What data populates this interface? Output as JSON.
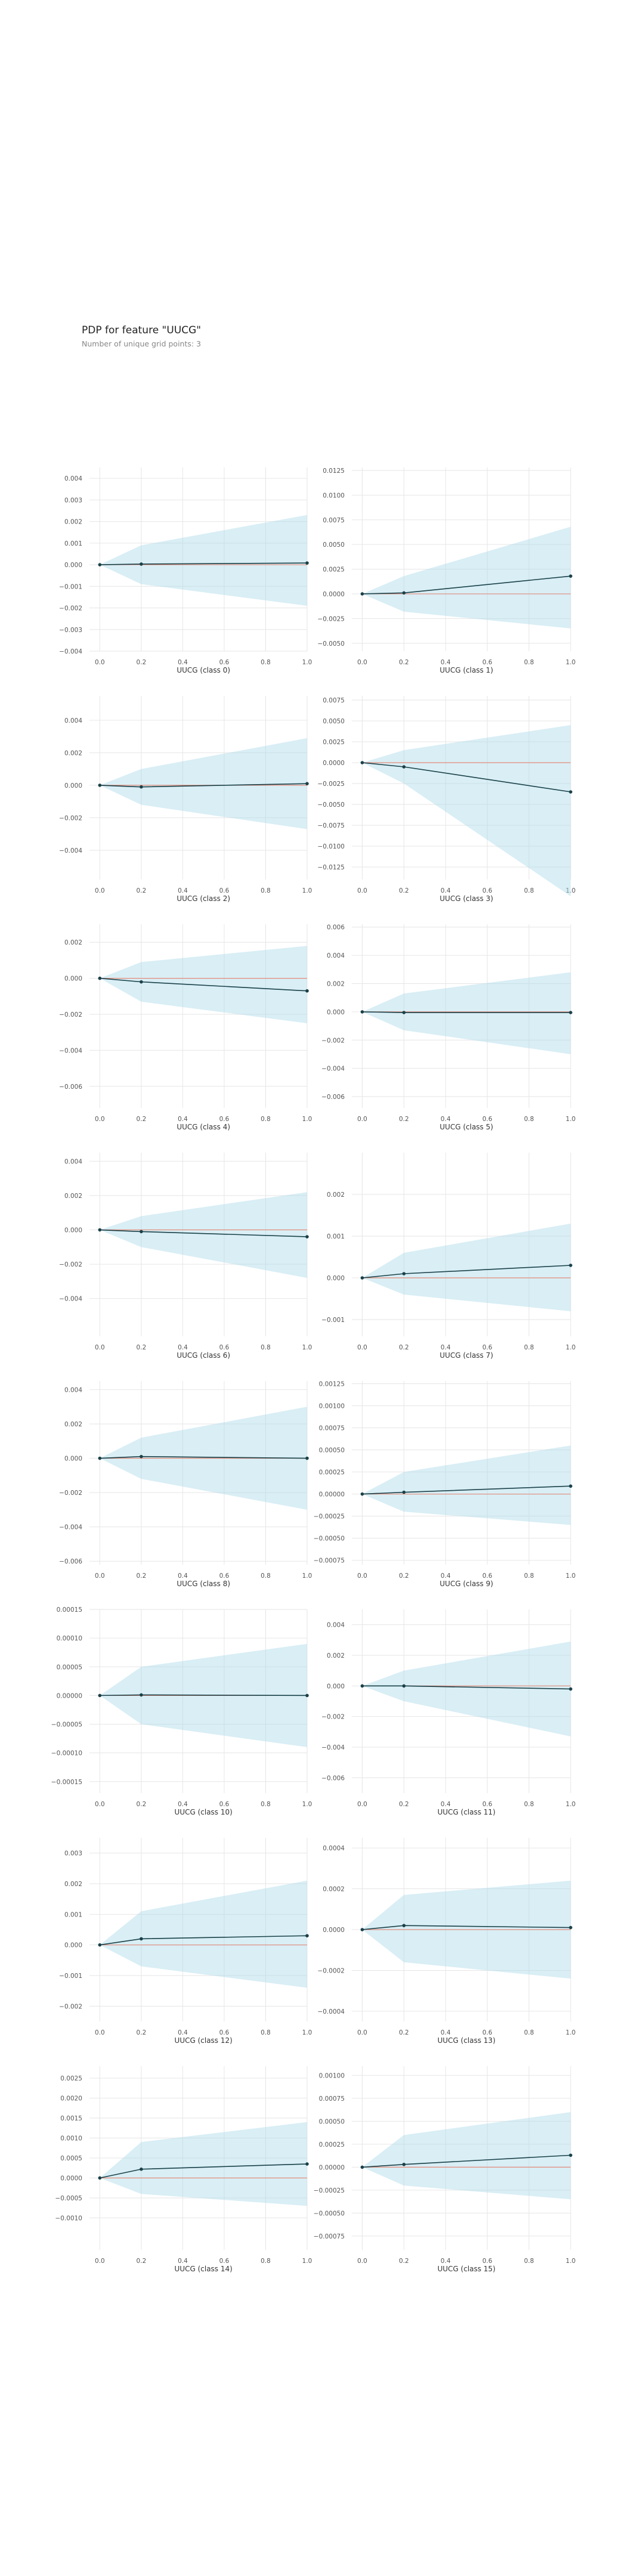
{
  "header": {
    "title": "PDP for feature \"UUCG\"",
    "subtitle": "Number of unique grid points: 3"
  },
  "colors": {
    "band": "#aad9e8",
    "line": "#1a4149",
    "zero_line": "#e38b7a",
    "grid": "#e6e6e6",
    "tick_text": "#555555"
  },
  "chart_data": [
    {
      "type": "line",
      "xlabel": "UUCG (class 0)",
      "x": [
        0.0,
        0.2,
        1.0
      ],
      "y": [
        0.0,
        3e-05,
        8e-05
      ],
      "lower": [
        0.0,
        -0.0009,
        -0.0019
      ],
      "upper": [
        0.0,
        0.0009,
        0.0023
      ],
      "ylim": [
        -0.004,
        0.0045
      ],
      "yticks": [
        -0.004,
        -0.003,
        -0.002,
        -0.001,
        0.0,
        0.001,
        0.002,
        0.003,
        0.004
      ],
      "ytick_labels": [
        "−0.004",
        "−0.003",
        "−0.002",
        "−0.001",
        "0.000",
        "0.001",
        "0.002",
        "0.003",
        "0.004"
      ],
      "xlim": [
        -0.05,
        1.0
      ],
      "xticks": [
        0.0,
        0.2,
        0.4,
        0.6,
        0.8,
        1.0
      ],
      "xtick_labels": [
        "0.0",
        "0.2",
        "0.4",
        "0.6",
        "0.8",
        "1.0"
      ]
    },
    {
      "type": "line",
      "xlabel": "UUCG (class 1)",
      "x": [
        0.0,
        0.2,
        1.0
      ],
      "y": [
        0.0,
        0.0001,
        0.0018
      ],
      "lower": [
        0.0,
        -0.0018,
        -0.0035
      ],
      "upper": [
        0.0,
        0.0018,
        0.0068
      ],
      "ylim": [
        -0.0058,
        0.0128
      ],
      "yticks": [
        -0.005,
        -0.0025,
        0.0,
        0.0025,
        0.005,
        0.0075,
        0.01,
        0.0125
      ],
      "ytick_labels": [
        "−0.0050",
        "−0.0025",
        "0.0000",
        "0.0025",
        "0.0050",
        "0.0075",
        "0.0100",
        "0.0125"
      ],
      "xlim": [
        -0.05,
        1.0
      ],
      "xticks": [
        0.0,
        0.2,
        0.4,
        0.6,
        0.8,
        1.0
      ],
      "xtick_labels": [
        "0.0",
        "0.2",
        "0.4",
        "0.6",
        "0.8",
        "1.0"
      ]
    },
    {
      "type": "line",
      "xlabel": "UUCG (class 2)",
      "x": [
        0.0,
        0.2,
        1.0
      ],
      "y": [
        0.0,
        -0.0001,
        0.0001
      ],
      "lower": [
        0.0,
        -0.0012,
        -0.0027
      ],
      "upper": [
        0.0,
        0.001,
        0.0029
      ],
      "ylim": [
        -0.0058,
        0.0055
      ],
      "yticks": [
        -0.004,
        -0.002,
        0.0,
        0.002,
        0.004
      ],
      "ytick_labels": [
        "−0.004",
        "−0.002",
        "0.000",
        "0.002",
        "0.004"
      ],
      "xlim": [
        -0.05,
        1.0
      ],
      "xticks": [
        0.0,
        0.2,
        0.4,
        0.6,
        0.8,
        1.0
      ],
      "xtick_labels": [
        "0.0",
        "0.2",
        "0.4",
        "0.6",
        "0.8",
        "1.0"
      ]
    },
    {
      "type": "line",
      "xlabel": "UUCG (class 3)",
      "x": [
        0.0,
        0.2,
        1.0
      ],
      "y": [
        0.0,
        -0.0005,
        -0.0035
      ],
      "lower": [
        0.0,
        -0.0025,
        -0.016
      ],
      "upper": [
        0.0,
        0.0015,
        0.0045
      ],
      "ylim": [
        -0.014,
        0.008
      ],
      "yticks": [
        -0.0125,
        -0.01,
        -0.0075,
        -0.005,
        -0.0025,
        0.0,
        0.0025,
        0.005,
        0.0075
      ],
      "ytick_labels": [
        "−0.0125",
        "−0.0100",
        "−0.0075",
        "−0.0050",
        "−0.0025",
        "0.0000",
        "0.0025",
        "0.0050",
        "0.0075"
      ],
      "xlim": [
        -0.05,
        1.0
      ],
      "xticks": [
        0.0,
        0.2,
        0.4,
        0.6,
        0.8,
        1.0
      ],
      "xtick_labels": [
        "0.0",
        "0.2",
        "0.4",
        "0.6",
        "0.8",
        "1.0"
      ]
    },
    {
      "type": "line",
      "xlabel": "UUCG (class 4)",
      "x": [
        0.0,
        0.2,
        1.0
      ],
      "y": [
        0.0,
        -0.0002,
        -0.0007
      ],
      "lower": [
        0.0,
        -0.0013,
        -0.0025
      ],
      "upper": [
        0.0,
        0.0009,
        0.0018
      ],
      "ylim": [
        -0.0072,
        0.003
      ],
      "yticks": [
        -0.006,
        -0.004,
        -0.002,
        0.0,
        0.002
      ],
      "ytick_labels": [
        "−0.006",
        "−0.004",
        "−0.002",
        "0.000",
        "0.002"
      ],
      "xlim": [
        -0.05,
        1.0
      ],
      "xticks": [
        0.0,
        0.2,
        0.4,
        0.6,
        0.8,
        1.0
      ],
      "xtick_labels": [
        "0.0",
        "0.2",
        "0.4",
        "0.6",
        "0.8",
        "1.0"
      ]
    },
    {
      "type": "line",
      "xlabel": "UUCG (class 5)",
      "x": [
        0.0,
        0.2,
        1.0
      ],
      "y": [
        0.0,
        -5e-05,
        -5e-05
      ],
      "lower": [
        0.0,
        -0.0013,
        -0.003
      ],
      "upper": [
        0.0,
        0.0013,
        0.0028
      ],
      "ylim": [
        -0.0068,
        0.0062
      ],
      "yticks": [
        -0.006,
        -0.004,
        -0.002,
        0.0,
        0.002,
        0.004,
        0.006
      ],
      "ytick_labels": [
        "−0.006",
        "−0.004",
        "−0.002",
        "0.000",
        "0.002",
        "0.004",
        "0.006"
      ],
      "xlim": [
        -0.05,
        1.0
      ],
      "xticks": [
        0.0,
        0.2,
        0.4,
        0.6,
        0.8,
        1.0
      ],
      "xtick_labels": [
        "0.0",
        "0.2",
        "0.4",
        "0.6",
        "0.8",
        "1.0"
      ]
    },
    {
      "type": "line",
      "xlabel": "UUCG (class 6)",
      "x": [
        0.0,
        0.2,
        1.0
      ],
      "y": [
        0.0,
        -0.0001,
        -0.0004
      ],
      "lower": [
        0.0,
        -0.001,
        -0.0028
      ],
      "upper": [
        0.0,
        0.0008,
        0.0022
      ],
      "ylim": [
        -0.0062,
        0.0045
      ],
      "yticks": [
        -0.004,
        -0.002,
        0.0,
        0.002,
        0.004
      ],
      "ytick_labels": [
        "−0.004",
        "−0.002",
        "0.000",
        "0.002",
        "0.004"
      ],
      "xlim": [
        -0.05,
        1.0
      ],
      "xticks": [
        0.0,
        0.2,
        0.4,
        0.6,
        0.8,
        1.0
      ],
      "xtick_labels": [
        "0.0",
        "0.2",
        "0.4",
        "0.6",
        "0.8",
        "1.0"
      ]
    },
    {
      "type": "line",
      "xlabel": "UUCG (class 7)",
      "x": [
        0.0,
        0.2,
        1.0
      ],
      "y": [
        0.0,
        0.0001,
        0.0003
      ],
      "lower": [
        0.0,
        -0.0004,
        -0.0008
      ],
      "upper": [
        0.0,
        0.0006,
        0.0013
      ],
      "ylim": [
        -0.0014,
        0.003
      ],
      "yticks": [
        -0.001,
        0.0,
        0.001,
        0.002
      ],
      "ytick_labels": [
        "−0.001",
        "0.000",
        "0.001",
        "0.002"
      ],
      "xlim": [
        -0.05,
        1.0
      ],
      "xticks": [
        0.0,
        0.2,
        0.4,
        0.6,
        0.8,
        1.0
      ],
      "xtick_labels": [
        "0.0",
        "0.2",
        "0.4",
        "0.6",
        "0.8",
        "1.0"
      ]
    },
    {
      "type": "line",
      "xlabel": "UUCG (class 8)",
      "x": [
        0.0,
        0.2,
        1.0
      ],
      "y": [
        0.0,
        0.0001,
        0.0
      ],
      "lower": [
        0.0,
        -0.0012,
        -0.003
      ],
      "upper": [
        0.0,
        0.0012,
        0.003
      ],
      "ylim": [
        -0.0062,
        0.0045
      ],
      "yticks": [
        -0.006,
        -0.004,
        -0.002,
        0.0,
        0.002,
        0.004
      ],
      "ytick_labels": [
        "−0.006",
        "−0.004",
        "−0.002",
        "0.000",
        "0.002",
        "0.004"
      ],
      "xlim": [
        -0.05,
        1.0
      ],
      "xticks": [
        0.0,
        0.2,
        0.4,
        0.6,
        0.8,
        1.0
      ],
      "xtick_labels": [
        "0.0",
        "0.2",
        "0.4",
        "0.6",
        "0.8",
        "1.0"
      ]
    },
    {
      "type": "line",
      "xlabel": "UUCG (class 9)",
      "x": [
        0.0,
        0.2,
        1.0
      ],
      "y": [
        0.0,
        2e-05,
        9e-05
      ],
      "lower": [
        0.0,
        -0.0002,
        -0.00035
      ],
      "upper": [
        0.0,
        0.00025,
        0.00055
      ],
      "ylim": [
        -0.0008,
        0.00128
      ],
      "yticks": [
        -0.00075,
        -0.0005,
        -0.00025,
        0.0,
        0.00025,
        0.0005,
        0.00075,
        0.001,
        0.00125
      ],
      "ytick_labels": [
        "−0.00075",
        "−0.00050",
        "−0.00025",
        "0.00000",
        "0.00025",
        "0.00050",
        "0.00075",
        "0.00100",
        "0.00125"
      ],
      "xlim": [
        -0.05,
        1.0
      ],
      "xticks": [
        0.0,
        0.2,
        0.4,
        0.6,
        0.8,
        1.0
      ],
      "xtick_labels": [
        "0.0",
        "0.2",
        "0.4",
        "0.6",
        "0.8",
        "1.0"
      ]
    },
    {
      "type": "line",
      "xlabel": "UUCG (class 10)",
      "x": [
        0.0,
        0.2,
        1.0
      ],
      "y": [
        0.0,
        1e-06,
        0.0
      ],
      "lower": [
        0.0,
        -5e-05,
        -9e-05
      ],
      "upper": [
        0.0,
        5e-05,
        9e-05
      ],
      "ylim": [
        -0.00017,
        0.00015
      ],
      "yticks": [
        -0.00015,
        -0.0001,
        -5e-05,
        0.0,
        5e-05,
        0.0001,
        0.00015
      ],
      "ytick_labels": [
        "−0.00015",
        "−0.00010",
        "−0.00005",
        "0.00000",
        "0.00005",
        "0.00010",
        "0.00015"
      ],
      "xlim": [
        -0.05,
        1.0
      ],
      "xticks": [
        0.0,
        0.2,
        0.4,
        0.6,
        0.8,
        1.0
      ],
      "xtick_labels": [
        "0.0",
        "0.2",
        "0.4",
        "0.6",
        "0.8",
        "1.0"
      ]
    },
    {
      "type": "line",
      "xlabel": "UUCG (class 11)",
      "x": [
        0.0,
        0.2,
        1.0
      ],
      "y": [
        0.0,
        0.0,
        -0.0002
      ],
      "lower": [
        0.0,
        -0.001,
        -0.0033
      ],
      "upper": [
        0.0,
        0.001,
        0.0029
      ],
      "ylim": [
        -0.007,
        0.005
      ],
      "yticks": [
        -0.006,
        -0.004,
        -0.002,
        0.0,
        0.002,
        0.004
      ],
      "ytick_labels": [
        "−0.006",
        "−0.004",
        "−0.002",
        "0.000",
        "0.002",
        "0.004"
      ],
      "xlim": [
        -0.05,
        1.0
      ],
      "xticks": [
        0.0,
        0.2,
        0.4,
        0.6,
        0.8,
        1.0
      ],
      "xtick_labels": [
        "0.0",
        "0.2",
        "0.4",
        "0.6",
        "0.8",
        "1.0"
      ]
    },
    {
      "type": "line",
      "xlabel": "UUCG (class 12)",
      "x": [
        0.0,
        0.2,
        1.0
      ],
      "y": [
        0.0,
        0.0002,
        0.0003
      ],
      "lower": [
        0.0,
        -0.0007,
        -0.0014
      ],
      "upper": [
        0.0,
        0.0011,
        0.0021
      ],
      "ylim": [
        -0.0025,
        0.0035
      ],
      "yticks": [
        -0.002,
        -0.001,
        0.0,
        0.001,
        0.002,
        0.003
      ],
      "ytick_labels": [
        "−0.002",
        "−0.001",
        "0.000",
        "0.001",
        "0.002",
        "0.003"
      ],
      "xlim": [
        -0.05,
        1.0
      ],
      "xticks": [
        0.0,
        0.2,
        0.4,
        0.6,
        0.8,
        1.0
      ],
      "xtick_labels": [
        "0.0",
        "0.2",
        "0.4",
        "0.6",
        "0.8",
        "1.0"
      ]
    },
    {
      "type": "line",
      "xlabel": "UUCG (class 13)",
      "x": [
        0.0,
        0.2,
        1.0
      ],
      "y": [
        0.0,
        2e-05,
        1e-05
      ],
      "lower": [
        0.0,
        -0.00016,
        -0.00024
      ],
      "upper": [
        0.0,
        0.00017,
        0.00024
      ],
      "ylim": [
        -0.00045,
        0.00045
      ],
      "yticks": [
        -0.0004,
        -0.0002,
        0.0,
        0.0002,
        0.0004
      ],
      "ytick_labels": [
        "−0.0004",
        "−0.0002",
        "0.0000",
        "0.0002",
        "0.0004"
      ],
      "xlim": [
        -0.05,
        1.0
      ],
      "xticks": [
        0.0,
        0.2,
        0.4,
        0.6,
        0.8,
        1.0
      ],
      "xtick_labels": [
        "0.0",
        "0.2",
        "0.4",
        "0.6",
        "0.8",
        "1.0"
      ]
    },
    {
      "type": "line",
      "xlabel": "UUCG (class 14)",
      "x": [
        0.0,
        0.2,
        1.0
      ],
      "y": [
        0.0,
        0.00022,
        0.00035
      ],
      "lower": [
        0.0,
        -0.0004,
        -0.0007
      ],
      "upper": [
        0.0,
        0.0009,
        0.0014
      ],
      "ylim": [
        -0.0018,
        0.0028
      ],
      "yticks": [
        -0.001,
        -0.0005,
        0.0,
        0.0005,
        0.001,
        0.0015,
        0.002,
        0.0025
      ],
      "ytick_labels": [
        "−0.0010",
        "−0.0005",
        "0.0000",
        "0.0005",
        "0.0010",
        "0.0015",
        "0.0020",
        "0.0025"
      ],
      "xlim": [
        -0.05,
        1.0
      ],
      "xticks": [
        0.0,
        0.2,
        0.4,
        0.6,
        0.8,
        1.0
      ],
      "xtick_labels": [
        "0.0",
        "0.2",
        "0.4",
        "0.6",
        "0.8",
        "1.0"
      ]
    },
    {
      "type": "line",
      "xlabel": "UUCG (class 15)",
      "x": [
        0.0,
        0.2,
        1.0
      ],
      "y": [
        0.0,
        3e-05,
        0.00013
      ],
      "lower": [
        0.0,
        -0.0002,
        -0.00035
      ],
      "upper": [
        0.0,
        0.00035,
        0.0006
      ],
      "ylim": [
        -0.0009,
        0.0011
      ],
      "yticks": [
        -0.00075,
        -0.0005,
        -0.00025,
        0.0,
        0.00025,
        0.0005,
        0.00075,
        0.001
      ],
      "ytick_labels": [
        "−0.00075",
        "−0.00050",
        "−0.00025",
        "0.00000",
        "0.00025",
        "0.00050",
        "0.00075",
        "0.00100"
      ],
      "xlim": [
        -0.05,
        1.0
      ],
      "xticks": [
        0.0,
        0.2,
        0.4,
        0.6,
        0.8,
        1.0
      ],
      "xtick_labels": [
        "0.0",
        "0.2",
        "0.4",
        "0.6",
        "0.8",
        "1.0"
      ]
    }
  ]
}
